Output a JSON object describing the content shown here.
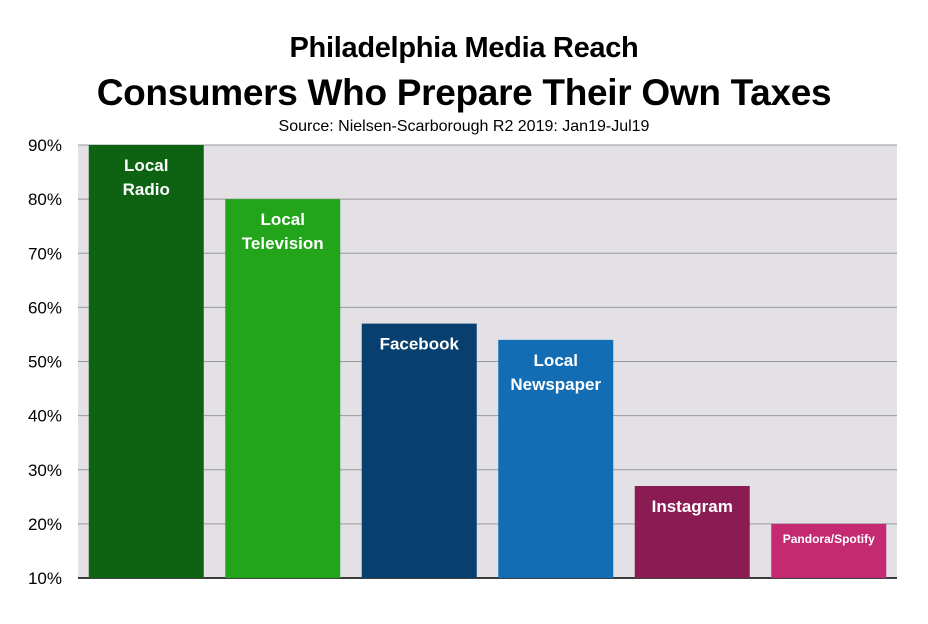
{
  "chart_data": {
    "type": "bar",
    "title": "Philadelphia Media Reach",
    "subtitle": "Consumers Who Prepare Their Own Taxes",
    "source": "Source: Nielsen-Scarborough R2 2019: Jan19-Jul19",
    "categories": [
      [
        "Local",
        "Radio"
      ],
      [
        "Local",
        "Television"
      ],
      [
        "Facebook"
      ],
      [
        "Local",
        "Newspaper"
      ],
      [
        "Instagram"
      ],
      [
        "Pandora/Spotify"
      ]
    ],
    "values": [
      90,
      80,
      57,
      54,
      27,
      20
    ],
    "colors": [
      "#0e6312",
      "#22a51b",
      "#073f6e",
      "#126db5",
      "#8a1c53",
      "#c42a71"
    ],
    "ylim": [
      10,
      90
    ],
    "yticks": [
      10,
      20,
      30,
      40,
      50,
      60,
      70,
      80,
      90
    ],
    "ytick_labels": [
      "10%",
      "20%",
      "30%",
      "40%",
      "50%",
      "60%",
      "70%",
      "80%",
      "90%"
    ],
    "xlabel": "",
    "ylabel": "",
    "grid": true,
    "legend": "none"
  }
}
